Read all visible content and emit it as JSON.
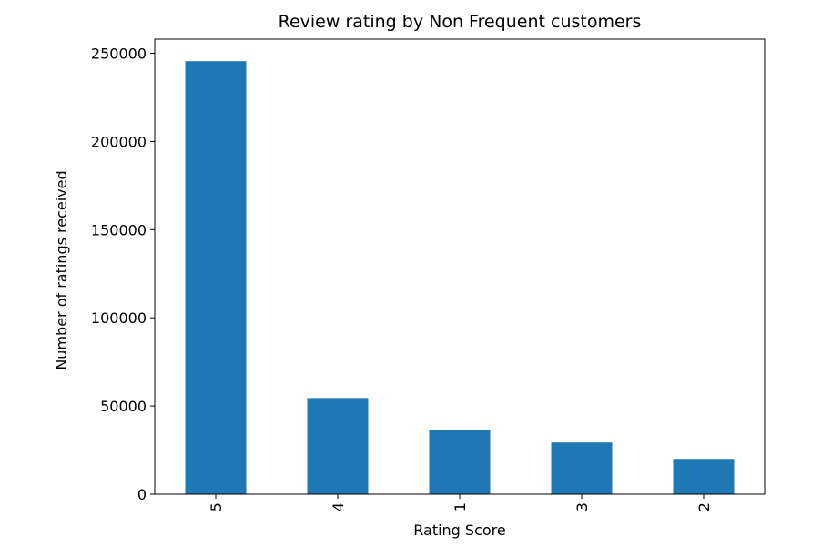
{
  "chart_data": {
    "type": "bar",
    "title": "Review rating by Non Frequent customers",
    "xlabel": "Rating Score",
    "ylabel": "Number of ratings received",
    "categories": [
      "5",
      "4",
      "1",
      "3",
      "2"
    ],
    "values": [
      245500,
      54500,
      36300,
      29300,
      20000
    ],
    "ylim": [
      0,
      258000
    ],
    "yticks": [
      0,
      50000,
      100000,
      150000,
      200000,
      250000
    ],
    "ytick_labels": [
      "0",
      "50000",
      "100000",
      "150000",
      "200000",
      "250000"
    ],
    "xtick_rotation": "vertical",
    "grid": false,
    "legend": "none",
    "bar_color": "#1f77b4"
  }
}
